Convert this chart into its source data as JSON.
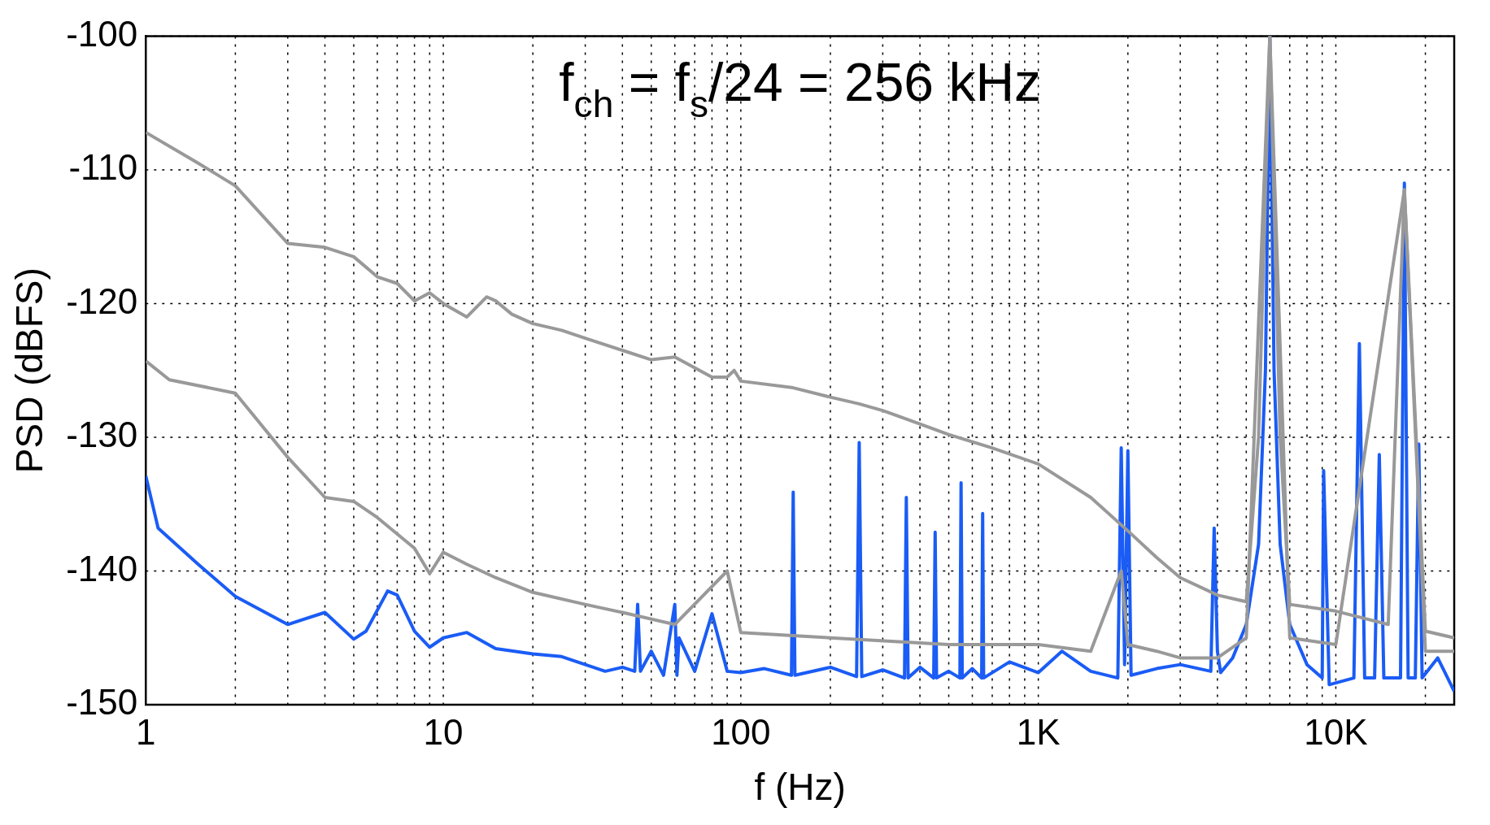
{
  "chart_data": {
    "type": "line",
    "xlabel": "f (Hz)",
    "ylabel": "PSD (dBFS)",
    "annotations": [
      "f$_{ch}$ = f$_{s}$/24 = 256 kHz"
    ],
    "log": "x",
    "grid": true,
    "legend": false,
    "marker": "none",
    "line_style": "solid",
    "xlim": [
      1,
      25000
    ],
    "xticks": [
      1,
      10,
      100,
      {
        "value": 1000,
        "label": "1K"
      },
      {
        "value": 10000,
        "label": "10K"
      }
    ],
    "ylim": [
      -150,
      -100
    ],
    "yticks": [
      -150,
      -140,
      -130,
      -120,
      -110,
      -100
    ],
    "series": [
      {
        "color": "#999999",
        "x": [
          1,
          1.5,
          2,
          3,
          4,
          5,
          6,
          7,
          8,
          9,
          10,
          12,
          14,
          15,
          17,
          20,
          25,
          30,
          40,
          50,
          60,
          70,
          80,
          90,
          95,
          100,
          150,
          200,
          250,
          300,
          400,
          500,
          700,
          1000,
          1500,
          2000,
          2500,
          3000,
          4000,
          5000,
          5500,
          6000,
          6500,
          7000,
          10000,
          15000,
          17000,
          20000,
          25000
        ],
        "values": [
          -107.2,
          -109.5,
          -111.2,
          -115.5,
          -115.8,
          -116.5,
          -118,
          -118.5,
          -119.8,
          -119.2,
          -120,
          -121,
          -119.5,
          -119.8,
          -120.8,
          -121.5,
          -122,
          -122.6,
          -123.5,
          -124.2,
          -124,
          -124.8,
          -125.5,
          -125.5,
          -125,
          -125.8,
          -126.3,
          -127,
          -127.5,
          -128,
          -129,
          -129.8,
          -130.8,
          -132,
          -134.5,
          -137,
          -139,
          -140.5,
          -141.8,
          -142.3,
          -130,
          -100,
          -130,
          -142.5,
          -143,
          -144,
          -111.5,
          -144.5,
          -145
        ]
      },
      {
        "color": "#999999",
        "x": [
          1,
          1.2,
          2,
          3,
          4,
          5,
          6,
          8,
          9,
          10,
          12,
          15,
          20,
          30,
          40,
          60,
          90,
          100,
          200,
          500,
          1000,
          1500,
          1900,
          2000,
          2500,
          3000,
          4000,
          5000,
          6000,
          7000,
          10000,
          17000,
          20000,
          25000
        ],
        "values": [
          -124.3,
          -125.7,
          -126.7,
          -131.5,
          -134.5,
          -134.8,
          -136,
          -138.3,
          -140.2,
          -138.6,
          -139.5,
          -140.5,
          -141.6,
          -142.5,
          -143.1,
          -144,
          -140,
          -144.6,
          -145,
          -145.5,
          -145.5,
          -146,
          -140,
          -145.5,
          -146,
          -146.5,
          -146.5,
          -145,
          -100,
          -145,
          -145.5,
          -111.5,
          -146,
          -146
        ]
      },
      {
        "color": "#1a5cf5",
        "x": [
          1,
          1.1,
          1.5,
          2,
          3,
          4,
          5,
          5.5,
          6.5,
          7,
          8,
          9,
          10,
          12,
          15,
          20,
          25,
          30,
          35,
          40,
          44,
          45,
          46,
          50,
          55,
          60,
          61,
          62,
          70,
          80,
          90,
          100,
          120,
          148,
          150,
          152,
          200,
          245,
          250,
          255,
          300,
          355,
          360,
          365,
          400,
          445,
          450,
          455,
          500,
          545,
          550,
          555,
          600,
          645,
          650,
          655,
          800,
          1000,
          1200,
          1500,
          1850,
          1900,
          1950,
          2000,
          2050,
          2500,
          3000,
          3800,
          3900,
          4000,
          4100,
          4500,
          5000,
          5500,
          5800,
          6000,
          6200,
          6500,
          7000,
          8000,
          9000,
          9100,
          9500,
          11500,
          12000,
          12500,
          13500,
          14000,
          14500,
          16500,
          17000,
          17500,
          18500,
          19000,
          19500,
          22000,
          25000
        ],
        "values": [
          -132.9,
          -136.8,
          -139.5,
          -141.9,
          -144,
          -143.1,
          -145.1,
          -144.5,
          -141.5,
          -141.8,
          -144.5,
          -145.7,
          -145,
          -144.6,
          -145.8,
          -146.2,
          -146.4,
          -147,
          -147.5,
          -147.2,
          -147.5,
          -142.5,
          -147.5,
          -146,
          -147.8,
          -142.5,
          -147.8,
          -145,
          -147.5,
          -143.2,
          -147.5,
          -147.6,
          -147.3,
          -147.8,
          -134.1,
          -147.8,
          -147.2,
          -147.9,
          -130.4,
          -147.9,
          -147.4,
          -148,
          -134.5,
          -148,
          -147.2,
          -148,
          -137.1,
          -148,
          -147.5,
          -148,
          -133.4,
          -148,
          -147.3,
          -148,
          -135.7,
          -148,
          -146.8,
          -147.6,
          -146,
          -147.5,
          -148,
          -130.8,
          -147,
          -131,
          -147.8,
          -147.3,
          -147,
          -147.5,
          -136.8,
          -146,
          -147.6,
          -146.5,
          -144,
          -138,
          -125,
          -100,
          -125,
          -138,
          -144,
          -147,
          -148,
          -132.5,
          -148.5,
          -148,
          -123,
          -148,
          -148,
          -131.3,
          -148,
          -148,
          -111,
          -148,
          -148,
          -130.5,
          -148,
          -146.5,
          -149
        ]
      }
    ]
  }
}
